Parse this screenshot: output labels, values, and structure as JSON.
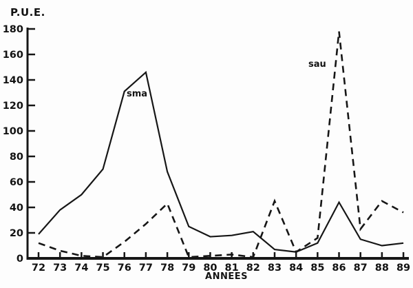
{
  "chart_data": {
    "type": "line",
    "title": "P.U.E.",
    "xlabel": "ANNEES",
    "ylabel": "P.U.E.",
    "x": [
      72,
      73,
      74,
      75,
      76,
      77,
      78,
      79,
      80,
      81,
      82,
      83,
      84,
      85,
      86,
      87,
      88,
      89
    ],
    "xtick_labels": [
      "72",
      "73",
      "74",
      "75",
      "76",
      "77",
      "78",
      "79",
      "80",
      "81",
      "82",
      "83",
      "84",
      "85",
      "86",
      "87",
      "88",
      "89"
    ],
    "yticks": [
      0,
      20,
      40,
      60,
      80,
      100,
      120,
      140,
      160,
      180
    ],
    "ylim": [
      0,
      180
    ],
    "grid": false,
    "legend_position": "inline-annotations",
    "series": [
      {
        "name": "sma",
        "style": "solid",
        "values": [
          19,
          38,
          50,
          70,
          131,
          146,
          68,
          25,
          17,
          18,
          21,
          7,
          5,
          12,
          44,
          15,
          10,
          12
        ]
      },
      {
        "name": "sau",
        "style": "dashed",
        "values": [
          12,
          6,
          2,
          1,
          13,
          27,
          43,
          1,
          2,
          3,
          1,
          45,
          5,
          16,
          178,
          23,
          45,
          36
        ]
      }
    ],
    "annotations": [
      {
        "text": "sma",
        "anchor": "near-solid-peak-1977"
      },
      {
        "text": "sau",
        "anchor": "near-dashed-peak-1986"
      }
    ],
    "colors": {
      "line": "#161616",
      "text": "#131313",
      "background": "#fdfdfd"
    }
  }
}
